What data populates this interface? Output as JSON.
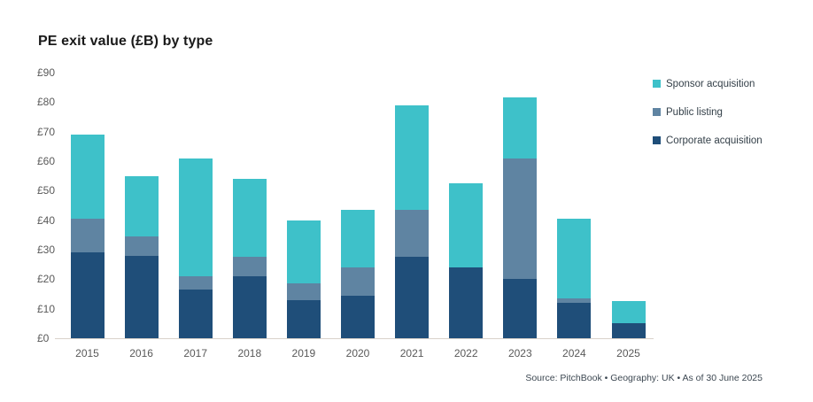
{
  "title": "PE exit value (£B) by type",
  "source_note": "Source: PitchBook  •  Geography: UK  •  As of 30 June 2025",
  "colors": {
    "sponsor": "#3ec1c9",
    "public": "#5f84a2",
    "corporate": "#1f4e79",
    "title_text": "#1a1a1a",
    "axis_text": "#595959",
    "legend_text": "#333f48",
    "baseline": "#d9d2ca",
    "background": "#ffffff"
  },
  "legend": [
    {
      "label": "Sponsor acquisition",
      "color": "#3ec1c9"
    },
    {
      "label": "Public listing",
      "color": "#5f84a2"
    },
    {
      "label": "Corporate acquisition",
      "color": "#1f4e79"
    }
  ],
  "chart_data": {
    "type": "bar",
    "stacked": true,
    "title": "PE exit value (£B) by type",
    "categories": [
      "2015",
      "2016",
      "2017",
      "2018",
      "2019",
      "2020",
      "2021",
      "2022",
      "2023",
      "2024",
      "2025"
    ],
    "series": [
      {
        "name": "Corporate acquisition",
        "key": "corporate",
        "color": "#1f4e79",
        "values": [
          29,
          28,
          16.5,
          21,
          13,
          14.5,
          27.5,
          24,
          20,
          12,
          5
        ]
      },
      {
        "name": "Public listing",
        "key": "public",
        "color": "#5f84a2",
        "values": [
          11.5,
          6.5,
          4.5,
          6.5,
          5.5,
          9.5,
          16,
          0,
          41,
          1.5,
          0
        ]
      },
      {
        "name": "Sponsor acquisition",
        "key": "sponsor",
        "color": "#3ec1c9",
        "values": [
          28.5,
          20.5,
          40,
          26.5,
          21.5,
          19.5,
          35.5,
          28.5,
          20.5,
          27,
          7.5
        ]
      }
    ],
    "totals": [
      69,
      55,
      61,
      54,
      40,
      43.5,
      79,
      52.5,
      81.5,
      40.5,
      12.5
    ],
    "xlabel": "",
    "ylabel": "",
    "ylim": [
      0,
      90
    ],
    "ytick_step": 10,
    "ytick_prefix": "£",
    "grid": false,
    "legend_position": "right"
  }
}
